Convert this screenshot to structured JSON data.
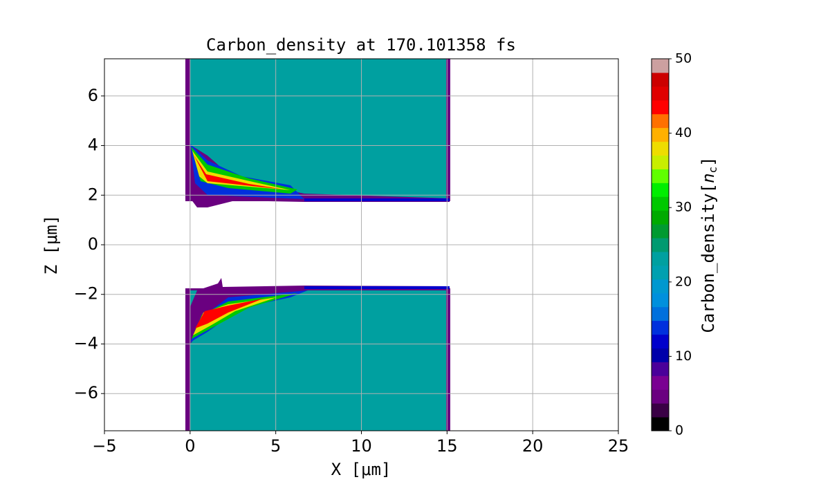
{
  "chart_data": {
    "type": "heatmap",
    "title": "Carbon_density at 170.101358 fs",
    "xlabel": "X [μm]",
    "ylabel": "Z [μm]",
    "xlim": [
      -5,
      25
    ],
    "ylim": [
      -7.5,
      7.5
    ],
    "xticks": [
      {
        "value": -5,
        "label": "−5"
      },
      0,
      5,
      10,
      15,
      20,
      25
    ],
    "yticks": [
      {
        "value": -6,
        "label": "−6"
      },
      {
        "value": -4,
        "label": "−4"
      },
      {
        "value": -2,
        "label": "−2"
      },
      0,
      2,
      4,
      6
    ],
    "grid": true,
    "colorbar": {
      "label": [
        "Carbon_density[",
        "n",
        "c",
        "]"
      ],
      "lim": [
        0,
        50
      ],
      "ticks": [
        0,
        10,
        20,
        30,
        40,
        50
      ],
      "colors": [
        "#000000",
        "#3a0045",
        "#6a0080",
        "#7a0092",
        "#4a009a",
        "#0000aa",
        "#0000cc",
        "#0030dd",
        "#0070dd",
        "#0090dd",
        "#0098d0",
        "#00a0b0",
        "#00a0a0",
        "#009a70",
        "#009a30",
        "#00aa00",
        "#00c800",
        "#00ee00",
        "#60ff00",
        "#c8ee00",
        "#eedd00",
        "#ffb000",
        "#ff7000",
        "#ff0000",
        "#e00000",
        "#cc0000",
        "#cca0a0"
      ]
    }
  }
}
